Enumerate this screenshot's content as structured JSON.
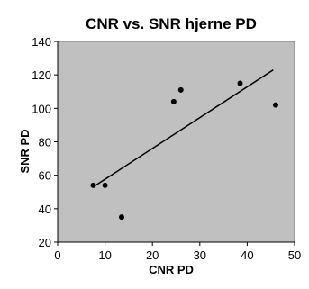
{
  "chart_data": {
    "type": "scatter",
    "title": "CNR vs. SNR hjerne PD",
    "xlabel": "CNR PD",
    "ylabel": "SNR PD",
    "xlim": [
      0,
      50
    ],
    "ylim": [
      20,
      140
    ],
    "xticks": [
      0,
      10,
      20,
      30,
      40,
      50
    ],
    "yticks": [
      20,
      40,
      60,
      80,
      100,
      120,
      140
    ],
    "grid": false,
    "legend": "none",
    "colors": {
      "plot_background": "#c0c0c0",
      "marker": "#000000",
      "trendline": "#000000"
    },
    "series": [
      {
        "points": [
          {
            "x": 7.5,
            "y": 54
          },
          {
            "x": 10,
            "y": 54
          },
          {
            "x": 13.5,
            "y": 35
          },
          {
            "x": 24.5,
            "y": 104
          },
          {
            "x": 26,
            "y": 111
          },
          {
            "x": 38.5,
            "y": 115
          },
          {
            "x": 46,
            "y": 102
          }
        ]
      }
    ],
    "trendline": {
      "type": "linear",
      "x_start": 7.5,
      "y_start": 53,
      "x_end": 45.5,
      "y_end": 123
    }
  }
}
